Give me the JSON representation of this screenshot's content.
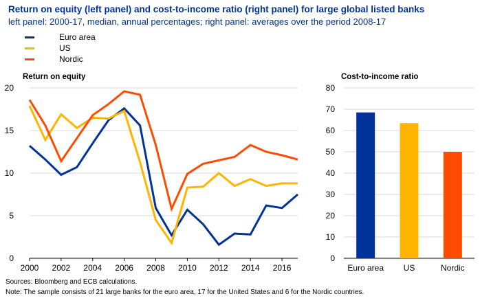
{
  "header": {
    "title": "Return on equity (left panel) and cost-to-income ratio (right panel) for large global listed banks",
    "subtitle": "left panel: 2000-17, median, annual percentages; right panel: averages over the period 2008-17"
  },
  "legend": [
    {
      "label": "Euro area",
      "color": "#003299"
    },
    {
      "label": "US",
      "color": "#FFB400"
    },
    {
      "label": "Nordic",
      "color": "#FF4B00"
    }
  ],
  "chart_data": [
    {
      "type": "line",
      "title": "Return on equity",
      "x": [
        2000,
        2001,
        2002,
        2003,
        2004,
        2005,
        2006,
        2007,
        2008,
        2009,
        2010,
        2011,
        2012,
        2013,
        2014,
        2015,
        2016,
        2017
      ],
      "x_tick_labels": [
        "2000",
        "2002",
        "2004",
        "2006",
        "2008",
        "2010",
        "2012",
        "2014",
        "2016"
      ],
      "ylim": [
        0,
        20
      ],
      "y_tick_labels": [
        "0",
        "5",
        "10",
        "15",
        "20"
      ],
      "grid": "horizontal",
      "series": [
        {
          "name": "Euro area",
          "color": "#003299",
          "values": [
            13.2,
            11.6,
            9.8,
            10.7,
            13.5,
            16.2,
            17.6,
            15.6,
            5.9,
            2.7,
            5.7,
            4.0,
            1.6,
            2.9,
            2.8,
            6.2,
            5.9,
            7.5
          ]
        },
        {
          "name": "US",
          "color": "#FFB400",
          "values": [
            17.9,
            13.9,
            16.9,
            15.3,
            16.5,
            16.4,
            17.3,
            11.3,
            4.5,
            1.8,
            8.3,
            8.4,
            10.0,
            8.5,
            9.3,
            8.5,
            8.8,
            8.8
          ]
        },
        {
          "name": "Nordic",
          "color": "#FF4B00",
          "values": [
            18.6,
            15.6,
            11.4,
            14.1,
            16.8,
            18.1,
            19.6,
            19.2,
            13.3,
            5.8,
            9.9,
            11.1,
            11.5,
            11.9,
            13.3,
            12.5,
            12.1,
            11.6
          ]
        }
      ]
    },
    {
      "type": "bar",
      "title": "Cost-to-income ratio",
      "categories": [
        "Euro area",
        "US",
        "Nordic"
      ],
      "values": [
        68.5,
        63.5,
        50
      ],
      "colors": [
        "#003299",
        "#FFB400",
        "#FF4B00"
      ],
      "ylim": [
        0,
        80
      ],
      "y_tick_labels": [
        "0",
        "10",
        "20",
        "30",
        "40",
        "50",
        "60",
        "70",
        "80"
      ],
      "grid": "horizontal"
    }
  ],
  "footer": {
    "sources": "Sources: Bloomberg and ECB calculations.",
    "note": "Note: The sample consists of 21 large banks for the euro area, 17 for the United States and 6 for the Nordic countries."
  }
}
